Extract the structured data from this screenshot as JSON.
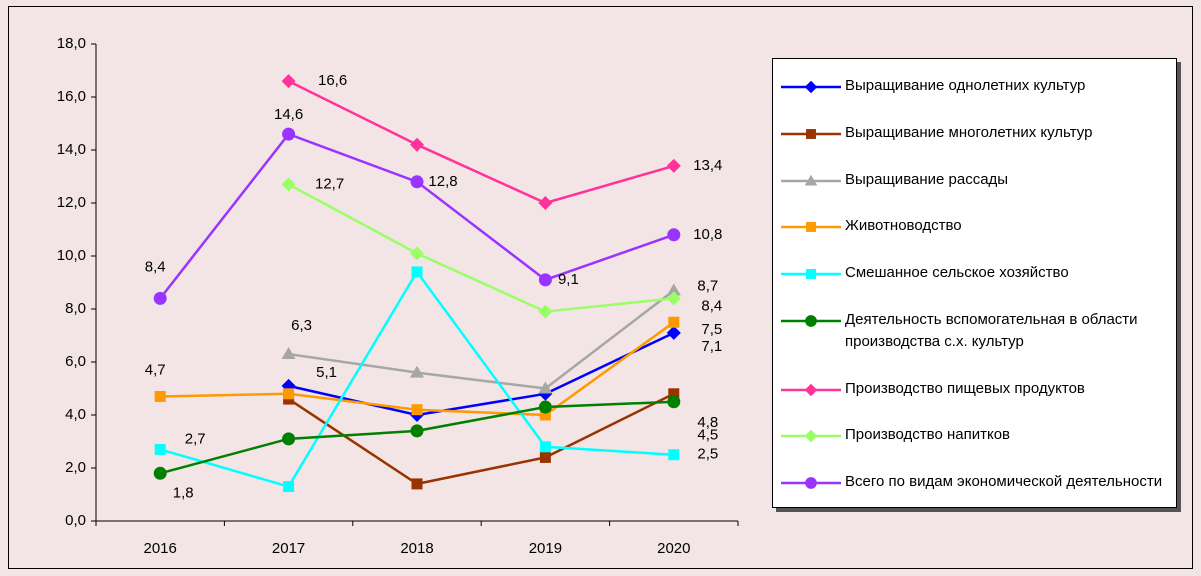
{
  "chart_data": {
    "type": "line",
    "categories": [
      "2016",
      "2017",
      "2018",
      "2019",
      "2020"
    ],
    "ylim": [
      0,
      18
    ],
    "yticks": [
      {
        "value": 0,
        "label": "0,0"
      },
      {
        "value": 2,
        "label": "2,0"
      },
      {
        "value": 4,
        "label": "4,0"
      },
      {
        "value": 6,
        "label": "6,0"
      },
      {
        "value": 8,
        "label": "8,0"
      },
      {
        "value": 10,
        "label": "10,0"
      },
      {
        "value": 12,
        "label": "12,0"
      },
      {
        "value": 14,
        "label": "14,0"
      },
      {
        "value": 16,
        "label": "16,0"
      },
      {
        "value": 18,
        "label": "18,0"
      }
    ],
    "legend": "right",
    "series": [
      {
        "name": "Выращивание однолетних культур",
        "color": "#0000ff",
        "marker": "diamond",
        "values": [
          null,
          5.1,
          4.0,
          4.8,
          7.1
        ],
        "value_labels": [
          null,
          "5,1",
          null,
          null,
          "7,1"
        ]
      },
      {
        "name": "Выращивание многолетних культур",
        "color": "#993300",
        "marker": "square",
        "values": [
          null,
          4.6,
          1.4,
          2.4,
          4.8
        ],
        "value_labels": [
          null,
          null,
          null,
          null,
          "4,8"
        ]
      },
      {
        "name": "Выращивание рассады",
        "color": "#a6a6a6",
        "marker": "triangle",
        "values": [
          null,
          6.3,
          5.6,
          5.0,
          8.7
        ],
        "value_labels": [
          null,
          "6,3",
          null,
          null,
          "8,7"
        ]
      },
      {
        "name": "Животноводство",
        "color": "#ff9900",
        "marker": "square",
        "values": [
          4.7,
          4.8,
          4.2,
          4.0,
          7.5
        ],
        "value_labels": [
          "4,7",
          null,
          null,
          null,
          "7,5"
        ]
      },
      {
        "name": "Смешанное сельское хозяйство",
        "color": "#00ffff",
        "marker": "square",
        "values": [
          2.7,
          1.3,
          9.4,
          2.8,
          2.5
        ],
        "value_labels": [
          "2,7",
          null,
          null,
          null,
          "2,5"
        ]
      },
      {
        "name": "Деятельность вспомогательная в области производства с.х. культур",
        "color": "#008000",
        "marker": "circle",
        "values": [
          1.8,
          3.1,
          3.4,
          4.3,
          4.5
        ],
        "value_labels": [
          "1,8",
          null,
          null,
          null,
          "4,5"
        ]
      },
      {
        "name": "Производство пищевых продуктов",
        "color": "#ff3399",
        "marker": "diamond",
        "values": [
          null,
          16.6,
          14.2,
          12.0,
          13.4
        ],
        "value_labels": [
          null,
          "16,6",
          null,
          null,
          "13,4"
        ]
      },
      {
        "name": "Производство напитков",
        "color": "#99ff66",
        "marker": "diamond",
        "values": [
          null,
          12.7,
          10.1,
          7.9,
          8.4
        ],
        "value_labels": [
          null,
          "12,7",
          null,
          null,
          "8,4"
        ]
      },
      {
        "name": "Всего по видам экономической деятельности",
        "color": "#9933ff",
        "marker": "circle",
        "values": [
          8.4,
          14.6,
          12.8,
          9.1,
          10.8
        ],
        "value_labels": [
          "8,4",
          "14,6",
          "12,8",
          "9,1",
          "10,8"
        ]
      }
    ]
  }
}
